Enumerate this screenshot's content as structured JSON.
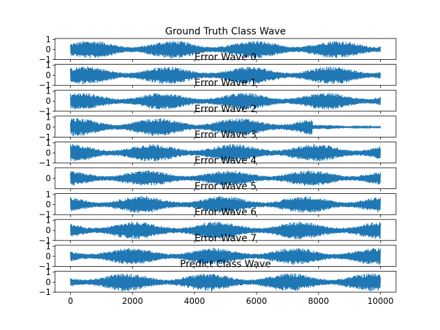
{
  "chart_data": {
    "type": "line",
    "title": "Ground Truth Class Wave",
    "xlim": [
      -500,
      10500
    ],
    "x_ticks": [
      0,
      2000,
      4000,
      6000,
      8000,
      10000
    ],
    "x_tick_labels": [
      "0",
      "2000",
      "4000",
      "6000",
      "8000",
      "10000"
    ],
    "samples": 10000,
    "line_color": "#1f77b4",
    "panels": [
      {
        "title": "Ground Truth Class Wave",
        "ylim": [
          -1,
          1.1
        ],
        "y_ticks": [
          -1,
          0,
          1
        ],
        "y_tick_labels": [
          "−1",
          "0",
          "1"
        ],
        "amplitude": 0.9,
        "tail_amplitude": 0.9,
        "phase": 0.0
      },
      {
        "title": "Error Wave 0",
        "ylim": [
          -1,
          1.1
        ],
        "y_ticks": [
          -1,
          0,
          1
        ],
        "y_tick_labels": [
          "−1",
          "0",
          "1"
        ],
        "amplitude": 0.9,
        "tail_amplitude": 0.9,
        "phase": 0.4
      },
      {
        "title": "Error Wave 1",
        "ylim": [
          -1,
          1.1
        ],
        "y_ticks": [
          -1,
          0,
          1
        ],
        "y_tick_labels": [
          "−1",
          "0",
          "1"
        ],
        "amplitude": 0.85,
        "tail_amplitude": 0.85,
        "phase": 0.8
      },
      {
        "title": "Error Wave 2",
        "ylim": [
          -1,
          1.1
        ],
        "y_ticks": [
          -1,
          0,
          1
        ],
        "y_tick_labels": [
          "−1",
          "0",
          "1"
        ],
        "amplitude": 0.9,
        "tail_amplitude": 0.22,
        "phase": 1.2
      },
      {
        "title": "Error Wave 3",
        "ylim": [
          -1,
          1.1
        ],
        "y_ticks": [
          -1,
          0,
          1
        ],
        "y_tick_labels": [
          "−1",
          "0",
          "1"
        ],
        "amplitude": 0.9,
        "tail_amplitude": 0.9,
        "phase": 1.6
      },
      {
        "title": "Error Wave 4",
        "ylim": [
          -0.8,
          0.8
        ],
        "y_ticks": [
          0
        ],
        "y_tick_labels": [
          "0"
        ],
        "amplitude": 0.6,
        "tail_amplitude": 0.6,
        "phase": 2.0
      },
      {
        "title": "Error Wave 5",
        "ylim": [
          -1,
          1.1
        ],
        "y_ticks": [
          -1,
          0,
          1
        ],
        "y_tick_labels": [
          "−1",
          "0",
          "1"
        ],
        "amplitude": 0.85,
        "tail_amplitude": 0.85,
        "phase": 2.4
      },
      {
        "title": "Error Wave 6",
        "ylim": [
          -1,
          1.1
        ],
        "y_ticks": [
          -1,
          0,
          1
        ],
        "y_tick_labels": [
          "−1",
          "0",
          "1"
        ],
        "amplitude": 0.9,
        "tail_amplitude": 0.9,
        "phase": 2.8
      },
      {
        "title": "Error Wave 7",
        "ylim": [
          -1,
          1.1
        ],
        "y_ticks": [
          -1,
          0,
          1
        ],
        "y_tick_labels": [
          "−1",
          "0",
          "1"
        ],
        "amplitude": 0.85,
        "tail_amplitude": 0.85,
        "phase": 3.2
      },
      {
        "title": "Predict Class Wave",
        "ylim": [
          -1,
          1.1
        ],
        "y_ticks": [
          -1,
          0,
          1
        ],
        "y_tick_labels": [
          "−1",
          "0",
          "1"
        ],
        "amplitude": 0.9,
        "tail_amplitude": 0.9,
        "phase": 3.6
      }
    ]
  }
}
